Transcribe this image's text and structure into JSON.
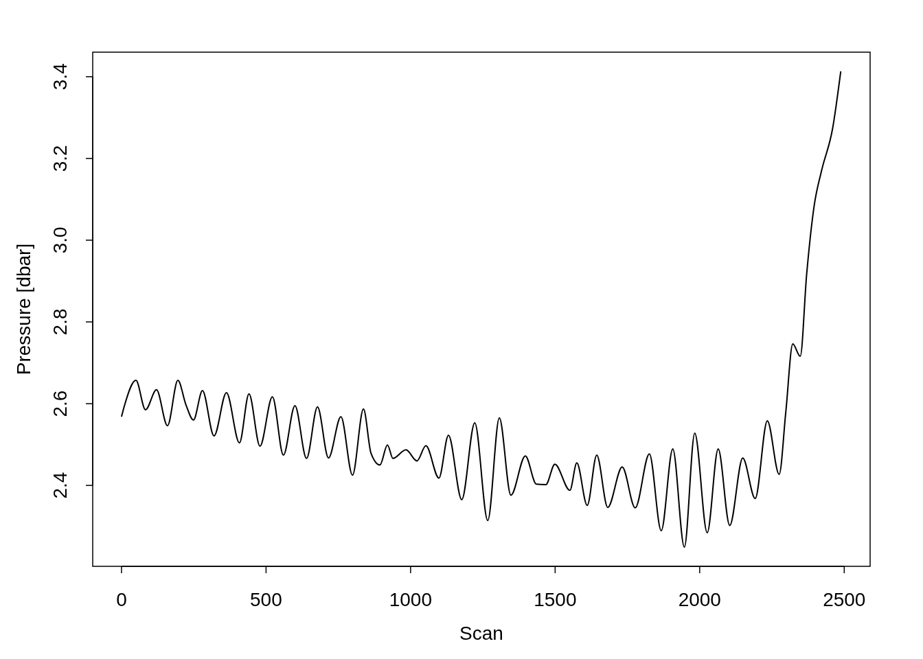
{
  "chart_data": {
    "type": "line",
    "xlabel": "Scan",
    "ylabel": "Pressure [dbar]",
    "x": [
      0,
      9,
      50,
      83,
      121,
      159,
      195,
      223,
      249,
      280,
      320,
      363,
      408,
      441,
      479,
      522,
      560,
      600,
      640,
      678,
      716,
      759,
      799,
      837,
      863,
      894,
      920,
      939,
      984,
      1022,
      1053,
      1098,
      1131,
      1177,
      1222,
      1267,
      1307,
      1347,
      1397,
      1435,
      1468,
      1499,
      1551,
      1575,
      1611,
      1644,
      1682,
      1732,
      1777,
      1826,
      1867,
      1907,
      1947,
      1983,
      2026,
      2064,
      2104,
      2149,
      2192,
      2234,
      2275,
      2298,
      2322,
      2348,
      2370,
      2396,
      2422,
      2460,
      2488
    ],
    "series": [
      {
        "color": "#000000",
        "values": [
          2.568,
          2.592,
          2.657,
          2.585,
          2.634,
          2.546,
          2.657,
          2.597,
          2.56,
          2.632,
          2.521,
          2.627,
          2.504,
          2.624,
          2.496,
          2.617,
          2.474,
          2.595,
          2.466,
          2.592,
          2.467,
          2.568,
          2.425,
          2.587,
          2.479,
          2.45,
          2.499,
          2.466,
          2.487,
          2.46,
          2.497,
          2.418,
          2.523,
          2.365,
          2.553,
          2.314,
          2.565,
          2.376,
          2.472,
          2.403,
          2.402,
          2.452,
          2.388,
          2.455,
          2.351,
          2.474,
          2.346,
          2.445,
          2.345,
          2.477,
          2.289,
          2.489,
          2.249,
          2.528,
          2.284,
          2.489,
          2.302,
          2.467,
          2.368,
          2.558,
          2.427,
          2.58,
          2.746,
          2.716,
          2.916,
          3.084,
          3.171,
          3.274,
          3.413
        ]
      }
    ],
    "xlim": [
      -99.6,
      2589.6
    ],
    "ylim": [
      2.202,
      3.46
    ],
    "xticks": [
      0,
      500,
      1000,
      1500,
      2000,
      2500
    ],
    "yticks": [
      2.4,
      2.6,
      2.8,
      {
        "value": 3,
        "label": "3.0"
      },
      3.2,
      3.4
    ],
    "grid": false,
    "marker": "none",
    "line_style": "solid"
  }
}
